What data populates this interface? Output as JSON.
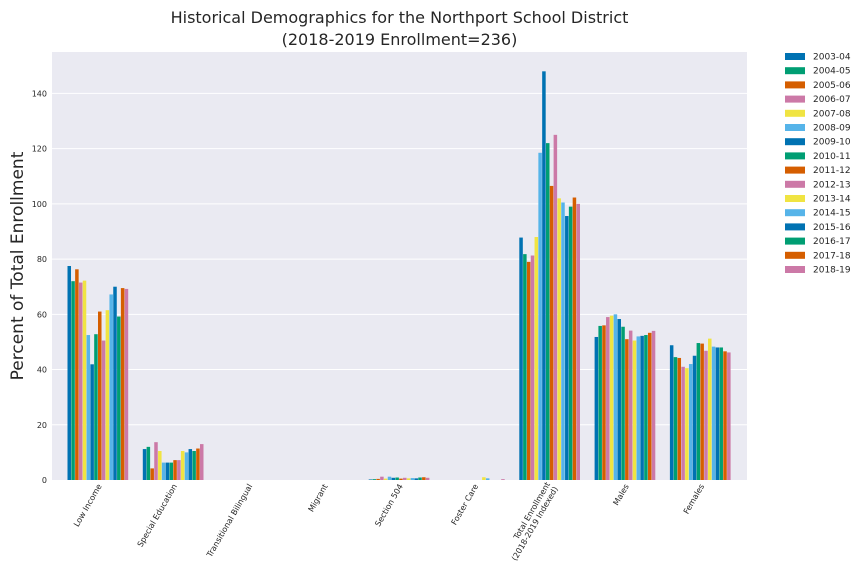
{
  "chart_data": {
    "type": "bar",
    "title": "Historical Demographics for the Northport School District",
    "subtitle": "(2018-2019 Enrollment=236)",
    "xlabel": "",
    "ylabel": "Percent of Total Enrollment",
    "ylim": [
      0,
      155
    ],
    "yticks": [
      0,
      20,
      40,
      60,
      80,
      100,
      120,
      140
    ],
    "grid": true,
    "legend_position": "outside-right",
    "categories": [
      "Low Income",
      "Special Education",
      "Transitional Bilingual",
      "Migrant",
      "Section 504",
      "Foster Care",
      "Total Enrollment\n(2018-2019 Indexed)",
      "Males",
      "Females"
    ],
    "series": [
      {
        "name": "2003-04",
        "color": "#0072B2",
        "values": [
          77.5,
          11.2,
          0,
          0,
          0.2,
          0,
          87.8,
          51.8,
          48.8
        ]
      },
      {
        "name": "2004-05",
        "color": "#009E73",
        "values": [
          72.0,
          12.0,
          0,
          0,
          0.3,
          0,
          81.8,
          55.8,
          44.5
        ]
      },
      {
        "name": "2005-06",
        "color": "#D55E00",
        "values": [
          76.3,
          4.2,
          0,
          0,
          0.4,
          0,
          79.0,
          56.0,
          44.2
        ]
      },
      {
        "name": "2006-07",
        "color": "#CC79A7",
        "values": [
          71.5,
          13.7,
          0,
          0,
          1.2,
          0,
          81.3,
          59.0,
          41.0
        ]
      },
      {
        "name": "2007-08",
        "color": "#F0E442",
        "values": [
          72.2,
          10.5,
          0,
          0,
          0.5,
          0,
          88.0,
          59.5,
          40.5
        ]
      },
      {
        "name": "2008-09",
        "color": "#56B4E9",
        "values": [
          52.5,
          6.3,
          0,
          0,
          1.2,
          0,
          118.5,
          60.0,
          42.0
        ]
      },
      {
        "name": "2009-10",
        "color": "#0072B2",
        "values": [
          41.9,
          6.3,
          0,
          0,
          0.8,
          0,
          148.0,
          58.3,
          45.0
        ]
      },
      {
        "name": "2010-11",
        "color": "#009E73",
        "values": [
          52.8,
          6.3,
          0,
          0,
          0.9,
          0,
          122.0,
          55.5,
          49.6
        ]
      },
      {
        "name": "2011-12",
        "color": "#D55E00",
        "values": [
          61.0,
          7.2,
          0,
          0,
          0.5,
          0,
          106.5,
          51.0,
          49.4
        ]
      },
      {
        "name": "2012-13",
        "color": "#CC79A7",
        "values": [
          50.5,
          7.2,
          0,
          0,
          0.8,
          0,
          125.0,
          54.1,
          46.8
        ]
      },
      {
        "name": "2013-14",
        "color": "#F0E442",
        "values": [
          61.5,
          10.5,
          0,
          0,
          0.6,
          1.0,
          102.0,
          50.5,
          51.2
        ]
      },
      {
        "name": "2014-15",
        "color": "#56B4E9",
        "values": [
          67.2,
          10.0,
          0,
          0,
          0.7,
          0.6,
          100.5,
          52.0,
          48.3
        ]
      },
      {
        "name": "2015-16",
        "color": "#0072B2",
        "values": [
          70.0,
          11.2,
          0,
          0,
          0.6,
          0,
          95.6,
          52.2,
          48.0
        ]
      },
      {
        "name": "2016-17",
        "color": "#009E73",
        "values": [
          59.2,
          10.5,
          0,
          0,
          0.9,
          0,
          99.0,
          52.5,
          48.0
        ]
      },
      {
        "name": "2017-18",
        "color": "#D55E00",
        "values": [
          69.5,
          11.4,
          0,
          0,
          1.0,
          0,
          102.3,
          53.3,
          46.6
        ]
      },
      {
        "name": "2018-19",
        "color": "#CC79A7",
        "values": [
          69.2,
          13.0,
          0,
          0,
          0.8,
          0.3,
          100.0,
          54.0,
          46.2
        ]
      }
    ]
  }
}
